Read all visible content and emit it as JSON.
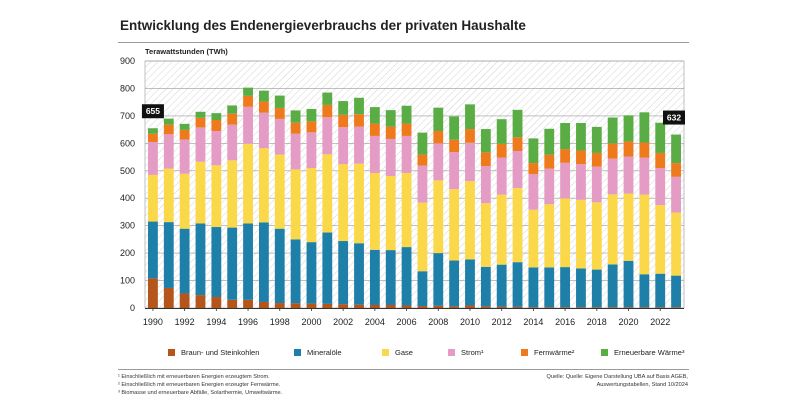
{
  "title": "Entwicklung des Endenergieverbrauchs der privaten Haushalte",
  "chart_data": {
    "type": "bar",
    "stacked": true,
    "ylabel": "Terawattstunden (TWh)",
    "ylim": [
      0,
      900
    ],
    "yticks": [
      0,
      100,
      200,
      300,
      400,
      500,
      600,
      700,
      800,
      900
    ],
    "categories": [
      "1990",
      "1991",
      "1992",
      "1993",
      "1994",
      "1995",
      "1996",
      "1997",
      "1998",
      "1999",
      "2000",
      "2001",
      "2002",
      "2003",
      "2004",
      "2005",
      "2006",
      "2007",
      "2008",
      "2009",
      "2010",
      "2011",
      "2012",
      "2013",
      "2014",
      "2015",
      "2016",
      "2017",
      "2018",
      "2019",
      "2020",
      "2021",
      "2022",
      "2023"
    ],
    "xtick_labels": [
      "1990",
      "1992",
      "1994",
      "1996",
      "1998",
      "2000",
      "2002",
      "2004",
      "2006",
      "2008",
      "2010",
      "2012",
      "2014",
      "2016",
      "2018",
      "2020",
      "2022"
    ],
    "series": [
      {
        "name": "Braun- und Steinkohlen",
        "color": "#b5541b",
        "values": [
          108,
          73,
          53,
          47,
          40,
          30,
          30,
          22,
          18,
          17,
          16,
          15,
          14,
          12,
          11,
          11,
          9,
          7,
          8,
          6,
          9,
          6,
          5,
          4,
          3,
          3,
          3,
          3,
          3,
          3,
          3,
          3,
          3,
          3
        ]
      },
      {
        "name": "Mineralöle",
        "color": "#1e7fa8",
        "values": [
          207,
          240,
          236,
          261,
          255,
          263,
          278,
          290,
          271,
          233,
          224,
          260,
          230,
          224,
          201,
          200,
          213,
          127,
          192,
          167,
          168,
          144,
          153,
          163,
          145,
          145,
          146,
          141,
          137,
          156,
          169,
          120,
          122,
          115
        ]
      },
      {
        "name": "Gase",
        "color": "#fbd84a",
        "values": [
          170,
          195,
          200,
          225,
          225,
          245,
          290,
          270,
          270,
          255,
          270,
          285,
          280,
          290,
          280,
          270,
          270,
          250,
          265,
          260,
          285,
          232,
          255,
          270,
          210,
          230,
          250,
          250,
          245,
          255,
          245,
          290,
          250,
          230
        ]
      },
      {
        "name": "Strom¹",
        "color": "#e49bc4",
        "values": [
          120,
          125,
          125,
          125,
          125,
          130,
          135,
          130,
          130,
          130,
          130,
          135,
          135,
          135,
          135,
          135,
          135,
          135,
          135,
          135,
          140,
          135,
          135,
          135,
          130,
          130,
          130,
          130,
          130,
          130,
          135,
          135,
          135,
          130
        ]
      },
      {
        "name": "Fernwärme²",
        "color": "#ef7a1c",
        "values": [
          30,
          35,
          35,
          35,
          40,
          40,
          40,
          40,
          40,
          40,
          40,
          45,
          45,
          45,
          45,
          45,
          45,
          40,
          45,
          45,
          50,
          50,
          50,
          50,
          40,
          50,
          50,
          50,
          50,
          55,
          55,
          55,
          55,
          50
        ]
      },
      {
        "name": "Erneuerbare Wärme³",
        "color": "#5aac44",
        "values": [
          20,
          22,
          22,
          22,
          25,
          30,
          30,
          40,
          45,
          45,
          45,
          45,
          50,
          60,
          60,
          60,
          65,
          80,
          85,
          85,
          90,
          85,
          90,
          100,
          90,
          95,
          95,
          100,
          95,
          95,
          95,
          110,
          110,
          104
        ]
      }
    ],
    "annotations": [
      {
        "year": "1990",
        "label": "655"
      },
      {
        "year": "2023",
        "label": "632"
      }
    ]
  },
  "legend": [
    {
      "label": "Braun- und Steinkohlen",
      "color": "#b5541b"
    },
    {
      "label": "Mineralöle",
      "color": "#1e7fa8"
    },
    {
      "label": "Gase",
      "color": "#fbd84a"
    },
    {
      "label": "Strom¹",
      "color": "#e49bc4"
    },
    {
      "label": "Fernwärme²",
      "color": "#ef7a1c"
    },
    {
      "label": "Erneuerbare Wärme³",
      "color": "#5aac44"
    }
  ],
  "footnotes": [
    "¹ Einschließlich mit erneuerbaren Energien erzeugtem Strom.",
    "² Einschließlich mit erneuerbaren Energien erzeugter Fernwärme.",
    "³ Biomasse und erneuerbare Abfälle, Solarthermie, Umweltwärme."
  ],
  "source": {
    "line1": "Quelle: Quelle: Eigene Darstellung UBA auf Basis AGEB,",
    "line2": "Auswertungstabellen, Stand 10/2024"
  }
}
